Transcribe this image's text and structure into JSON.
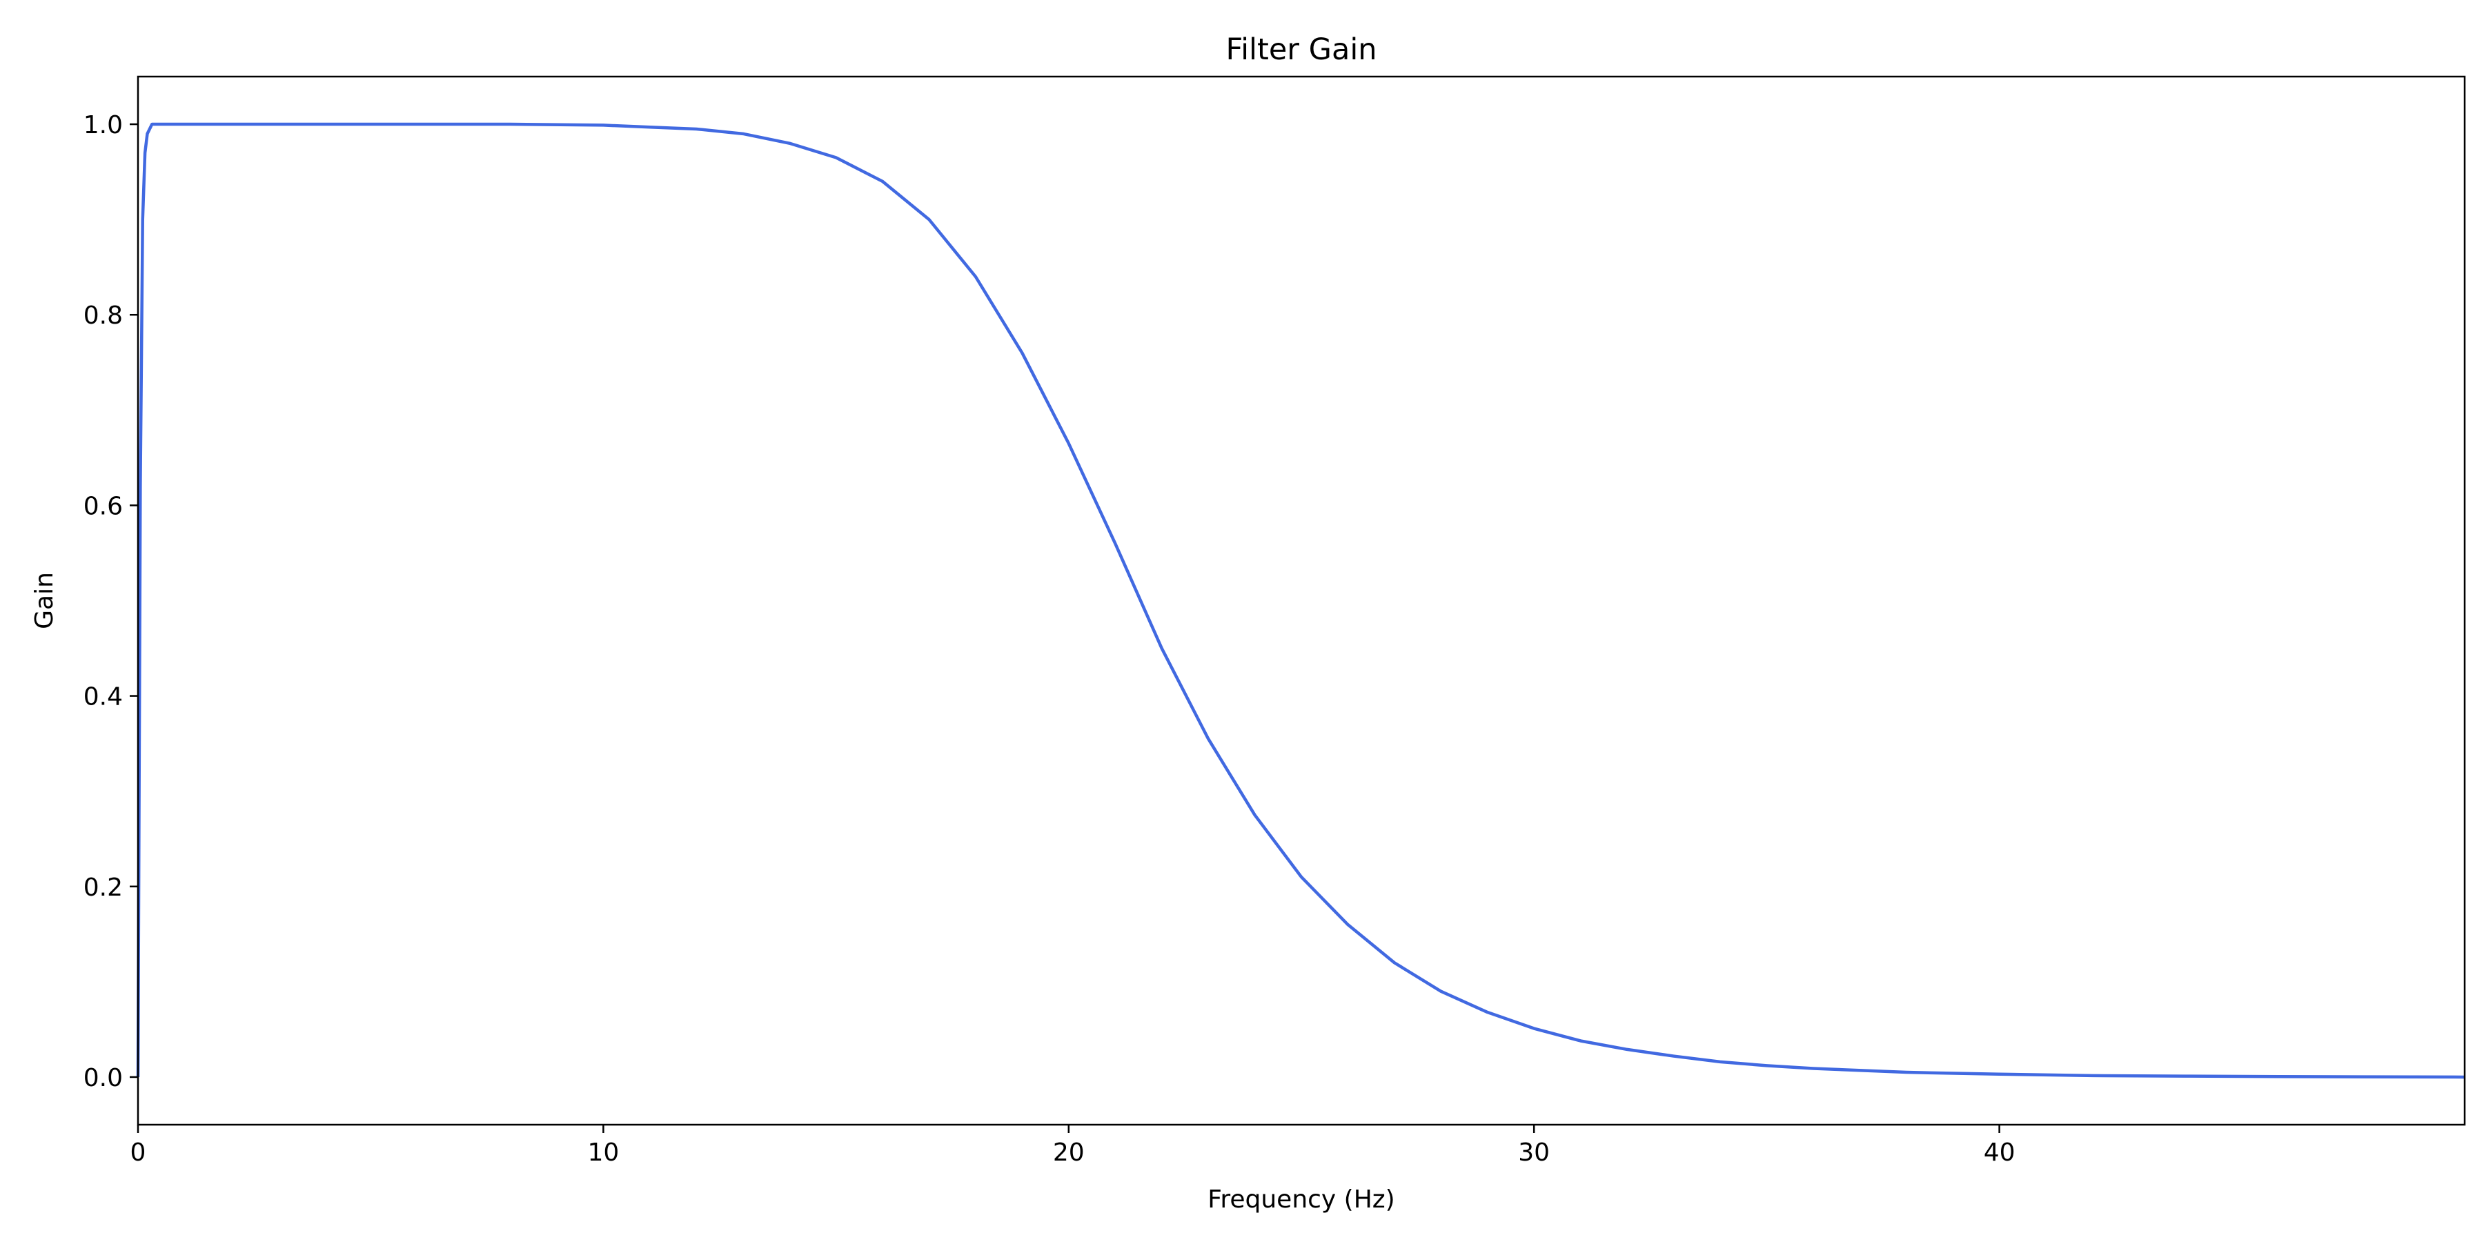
{
  "chart_data": {
    "type": "line",
    "title": "Filter Gain",
    "xlabel": "Frequency (Hz)",
    "ylabel": "Gain",
    "xlim": [
      0,
      50
    ],
    "ylim": [
      -0.05,
      1.05
    ],
    "grid": false,
    "x_ticks": [
      0,
      10,
      20,
      30,
      40
    ],
    "x_tick_labels": [
      "0",
      "10",
      "20",
      "30",
      "40"
    ],
    "y_ticks": [
      0.0,
      0.2,
      0.4,
      0.6,
      0.8,
      1.0
    ],
    "y_tick_labels": [
      "0.0",
      "0.2",
      "0.4",
      "0.6",
      "0.8",
      "1.0"
    ],
    "series": [
      {
        "color": "#4169e1",
        "x": [
          0,
          0.05,
          0.1,
          0.15,
          0.2,
          0.3,
          0.5,
          1,
          2,
          4,
          6,
          8,
          10,
          11,
          12,
          13,
          14,
          15,
          16,
          17,
          18,
          19,
          20,
          21,
          22,
          23,
          24,
          25,
          26,
          27,
          28,
          29,
          30,
          31,
          32,
          33,
          34,
          35,
          36,
          38,
          40,
          42,
          44,
          46,
          48,
          50
        ],
        "y": [
          0.0,
          0.62,
          0.9,
          0.97,
          0.99,
          1.0,
          1.0,
          1.0,
          1.0,
          1.0,
          1.0,
          1.0,
          0.999,
          0.997,
          0.995,
          0.99,
          0.98,
          0.965,
          0.94,
          0.9,
          0.84,
          0.76,
          0.665,
          0.56,
          0.45,
          0.355,
          0.275,
          0.21,
          0.16,
          0.12,
          0.09,
          0.068,
          0.051,
          0.038,
          0.029,
          0.022,
          0.016,
          0.012,
          0.009,
          0.005,
          0.003,
          0.0015,
          0.001,
          0.0005,
          0.0002,
          0.0
        ]
      }
    ]
  }
}
